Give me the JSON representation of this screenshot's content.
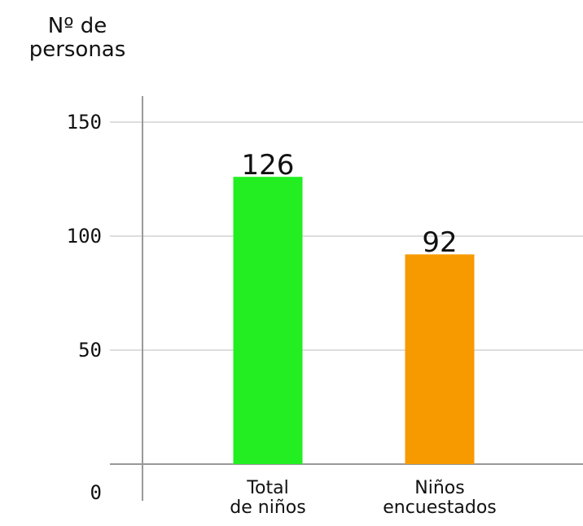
{
  "chart_data": {
    "type": "bar",
    "y_axis_label": "Nº de\npersonas",
    "categories": [
      "Total\nde niños",
      "Niños\nencuestados"
    ],
    "values": [
      126,
      92
    ],
    "colors": [
      "#22ee22",
      "#f79a00"
    ],
    "ylim": [
      0,
      160
    ],
    "yticks": [
      0,
      50,
      100,
      150
    ],
    "grid": true
  }
}
